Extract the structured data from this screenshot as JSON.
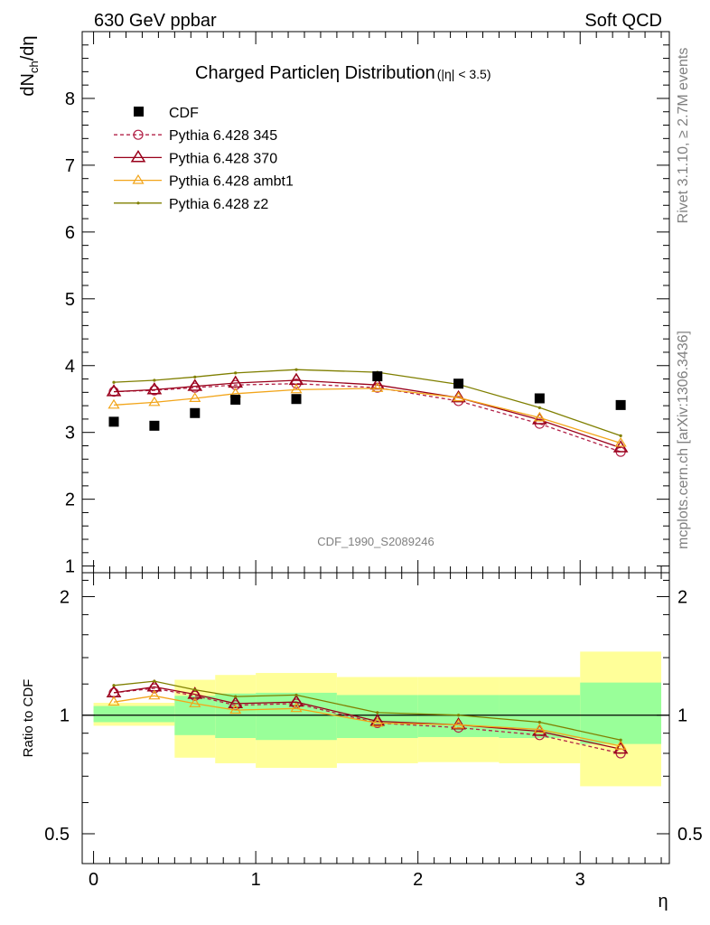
{
  "header": {
    "left": "630 GeV ppbar",
    "right": "Soft QCD"
  },
  "side_labels": {
    "rivet": "Rivet 3.1.10, ≥ 2.7M events",
    "mcplots": "mcplots.cern.ch [arXiv:1306.3436]"
  },
  "chart_data": [
    {
      "type": "line",
      "title": "Charged Particle η Distribution",
      "title_parts": {
        "main": "Charged Particle",
        "eta": "η",
        "rest": " Distribution",
        "cut": "(|η| < 3.5)"
      },
      "ylabel": "dN_ch/dη",
      "watermark": "CDF_1990_S2089246",
      "xlim": [
        -0.07,
        3.55
      ],
      "ylim": [
        0.9,
        9.0
      ],
      "yticks": [
        1,
        2,
        3,
        4,
        5,
        6,
        7,
        8
      ],
      "legend_position": "top-left",
      "data": {
        "name": "CDF",
        "x": [
          0.125,
          0.375,
          0.625,
          0.875,
          1.25,
          1.75,
          2.25,
          2.75,
          3.25
        ],
        "y": [
          3.16,
          3.1,
          3.29,
          3.49,
          3.5,
          3.84,
          3.73,
          3.51,
          3.41
        ]
      },
      "series": [
        {
          "name": "Pythia 6.428 345",
          "color": "#b22248",
          "style": "dashed",
          "marker": "circle",
          "y": [
            3.61,
            3.63,
            3.67,
            3.71,
            3.73,
            3.67,
            3.47,
            3.13,
            2.71
          ]
        },
        {
          "name": "Pythia 6.428 370",
          "color": "#99001a",
          "style": "solid",
          "marker": "triangle",
          "y": [
            3.61,
            3.64,
            3.69,
            3.74,
            3.78,
            3.71,
            3.52,
            3.19,
            2.77
          ]
        },
        {
          "name": "Pythia 6.428 ambt1",
          "color": "#f2a51a",
          "style": "solid",
          "marker": "triangle-open",
          "y": [
            3.41,
            3.45,
            3.51,
            3.58,
            3.64,
            3.66,
            3.52,
            3.22,
            2.84
          ]
        },
        {
          "name": "Pythia 6.428 z2",
          "color": "#7f7f00",
          "style": "solid",
          "marker": "dot",
          "y": [
            3.75,
            3.78,
            3.83,
            3.89,
            3.94,
            3.9,
            3.72,
            3.37,
            2.95
          ]
        }
      ]
    },
    {
      "type": "line",
      "ylabel": "Ratio to CDF",
      "xlabel": "η",
      "ylog": true,
      "ylim": [
        0.42,
        2.3
      ],
      "yticks": [
        0.5,
        1,
        2
      ],
      "ytick_labels": [
        "0.5",
        "1",
        "2"
      ],
      "xticks": [
        0,
        1,
        2,
        3
      ],
      "reference_line": 1,
      "bands": [
        {
          "x0": 0.0,
          "x1": 0.5,
          "yellow": [
            0.94,
            1.075
          ],
          "green": [
            0.96,
            1.055
          ]
        },
        {
          "x0": 0.5,
          "x1": 0.75,
          "yellow": [
            0.78,
            1.23
          ],
          "green": [
            0.89,
            1.12
          ]
        },
        {
          "x0": 0.75,
          "x1": 1.0,
          "yellow": [
            0.755,
            1.265
          ],
          "green": [
            0.875,
            1.135
          ]
        },
        {
          "x0": 1.0,
          "x1": 1.5,
          "yellow": [
            0.735,
            1.28
          ],
          "green": [
            0.865,
            1.14
          ]
        },
        {
          "x0": 1.5,
          "x1": 2.0,
          "yellow": [
            0.755,
            1.25
          ],
          "green": [
            0.875,
            1.125
          ]
        },
        {
          "x0": 2.0,
          "x1": 2.5,
          "yellow": [
            0.76,
            1.25
          ],
          "green": [
            0.88,
            1.125
          ]
        },
        {
          "x0": 2.5,
          "x1": 3.0,
          "yellow": [
            0.755,
            1.25
          ],
          "green": [
            0.875,
            1.125
          ]
        },
        {
          "x0": 3.0,
          "x1": 3.5,
          "yellow": [
            0.66,
            1.45
          ],
          "green": [
            0.845,
            1.21
          ]
        }
      ],
      "series": [
        {
          "name": "Pythia 6.428 345",
          "y": [
            1.14,
            1.17,
            1.12,
            1.06,
            1.07,
            0.955,
            0.93,
            0.89,
            0.8
          ]
        },
        {
          "name": "Pythia 6.428 370",
          "y": [
            1.14,
            1.18,
            1.13,
            1.07,
            1.08,
            0.965,
            0.945,
            0.91,
            0.82
          ]
        },
        {
          "name": "Pythia 6.428 ambt1",
          "y": [
            1.08,
            1.12,
            1.07,
            1.03,
            1.04,
            0.955,
            0.945,
            0.92,
            0.835
          ]
        },
        {
          "name": "Pythia 6.428 z2",
          "y": [
            1.19,
            1.22,
            1.16,
            1.115,
            1.125,
            1.015,
            1.0,
            0.96,
            0.865
          ]
        }
      ]
    }
  ]
}
